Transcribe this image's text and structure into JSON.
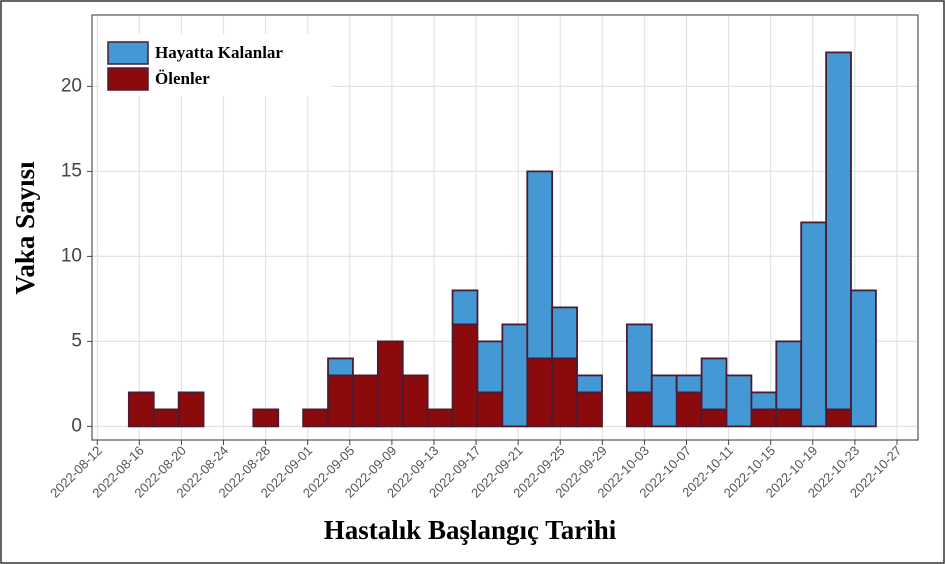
{
  "chart_data": {
    "type": "stacked_histogram",
    "x_label": "Hastalık Başlangıç Tarihi",
    "y_label": "Vaka Sayısı",
    "bins": [
      "2022-08-15T00:00",
      "2022-08-17T08:48",
      "2022-08-19T17:36",
      "2022-08-22T02:24",
      "2022-08-24T11:12",
      "2022-08-26T20:00",
      "2022-08-29T04:48",
      "2022-08-31T13:36",
      "2022-09-02T22:24",
      "2022-09-05T07:12",
      "2022-09-07T16:00",
      "2022-09-10T00:48",
      "2022-09-12T09:36",
      "2022-09-14T18:24",
      "2022-09-17T03:12",
      "2022-09-19T12:00",
      "2022-09-21T20:48",
      "2022-09-24T05:36",
      "2022-09-26T14:24",
      "2022-09-28T23:12",
      "2022-10-01T08:00",
      "2022-10-03T16:48",
      "2022-10-06T01:36",
      "2022-10-08T10:24",
      "2022-10-10T19:12",
      "2022-10-13T04:00",
      "2022-10-15T12:48",
      "2022-10-17T21:36",
      "2022-10-20T06:24",
      "2022-10-22T15:12",
      "2022-10-25T00:00"
    ],
    "series": [
      {
        "name": "Hayatta Kalanlar",
        "color": "#4499d4",
        "values": [
          0,
          0,
          0,
          0,
          0,
          0,
          0,
          0,
          1,
          0,
          0,
          0,
          0,
          2,
          3,
          6,
          11,
          3,
          1,
          0,
          4,
          3,
          1,
          3,
          3,
          1,
          4,
          12,
          21,
          8
        ]
      },
      {
        "name": "Ölenler",
        "color": "#8b0a0c",
        "values": [
          2,
          1,
          2,
          0,
          0,
          1,
          0,
          1,
          3,
          3,
          5,
          3,
          1,
          6,
          2,
          0,
          4,
          4,
          2,
          0,
          2,
          0,
          2,
          1,
          0,
          1,
          1,
          0,
          1,
          0
        ]
      }
    ],
    "xlim": [
      "2022-08-11T12:00",
      "2022-10-29T00:00"
    ],
    "xticks": [
      "2022-08-12",
      "2022-08-16",
      "2022-08-20",
      "2022-08-24",
      "2022-08-28",
      "2022-09-01",
      "2022-09-05",
      "2022-09-09",
      "2022-09-13",
      "2022-09-17",
      "2022-09-21",
      "2022-09-25",
      "2022-09-29",
      "2022-10-03",
      "2022-10-07",
      "2022-10-11",
      "2022-10-15",
      "2022-10-19",
      "2022-10-23",
      "2022-10-27"
    ],
    "ylim": [
      -0.8,
      24.2
    ],
    "yticks": [
      0,
      5,
      10,
      15,
      20
    ],
    "grid": true,
    "legend_position": "top-left"
  }
}
